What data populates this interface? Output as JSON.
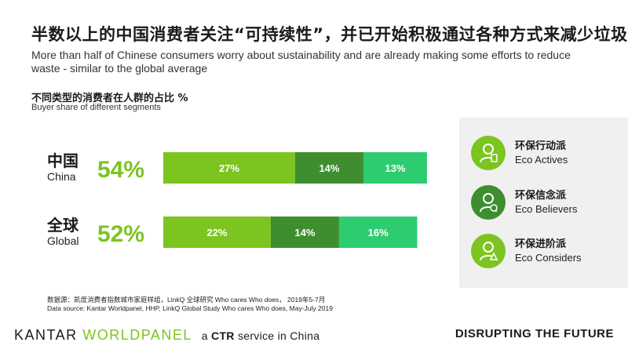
{
  "title": "半数以上的中国消费者关注“可持续性”，并已开始积极通过各种方式来减少垃圾",
  "subtitle": "More than half of Chinese consumers worry about sustainability and are already making some efforts to reduce waste - similar to the global average",
  "chart_title_cn": "不同类型的消费者在人群的占比 %",
  "chart_title_en": "Buyer share of different segments",
  "colors": {
    "eco_actives": "#7cc420",
    "eco_believers": "#3e8e2f",
    "eco_considers": "#2ecc71",
    "total_text": "#7cc420"
  },
  "chart_data": {
    "type": "bar",
    "orientation": "horizontal",
    "stacked": true,
    "categories": [
      {
        "cn": "中国",
        "en": "China",
        "total": "54%"
      },
      {
        "cn": "全球",
        "en": "Global",
        "total": "52%"
      }
    ],
    "series": [
      {
        "name": "Eco Actives",
        "values": [
          27,
          22
        ]
      },
      {
        "name": "Eco Believers",
        "values": [
          14,
          14
        ]
      },
      {
        "name": "Eco Considers",
        "values": [
          13,
          16
        ]
      }
    ]
  },
  "legend": [
    {
      "cn": "环保行动派",
      "en": "Eco Actives",
      "icon": "eco-active-person-icon"
    },
    {
      "cn": "环保信念派",
      "en": "Eco Believers",
      "icon": "eco-believer-person-icon"
    },
    {
      "cn": "环保进阶派",
      "en": "Eco Considers",
      "icon": "eco-consider-person-icon"
    }
  ],
  "source_cn": "数据源：凯度消费者指数城市家庭样组，LinkQ 全球研究 Who cares Who does， 2019年5-7月",
  "source_en": "Data source: Kantar Worldpanel, HHP, LinkQ Global Study Who cares Who does, May-July 2019",
  "brand": {
    "kantar": "KANTAR",
    "worldpanel": "WORLDPANEL",
    "ctr_prefix": "a",
    "ctr": "CTR",
    "ctr_suffix": "service in China"
  },
  "tagline": "DISRUPTING THE FUTURE"
}
